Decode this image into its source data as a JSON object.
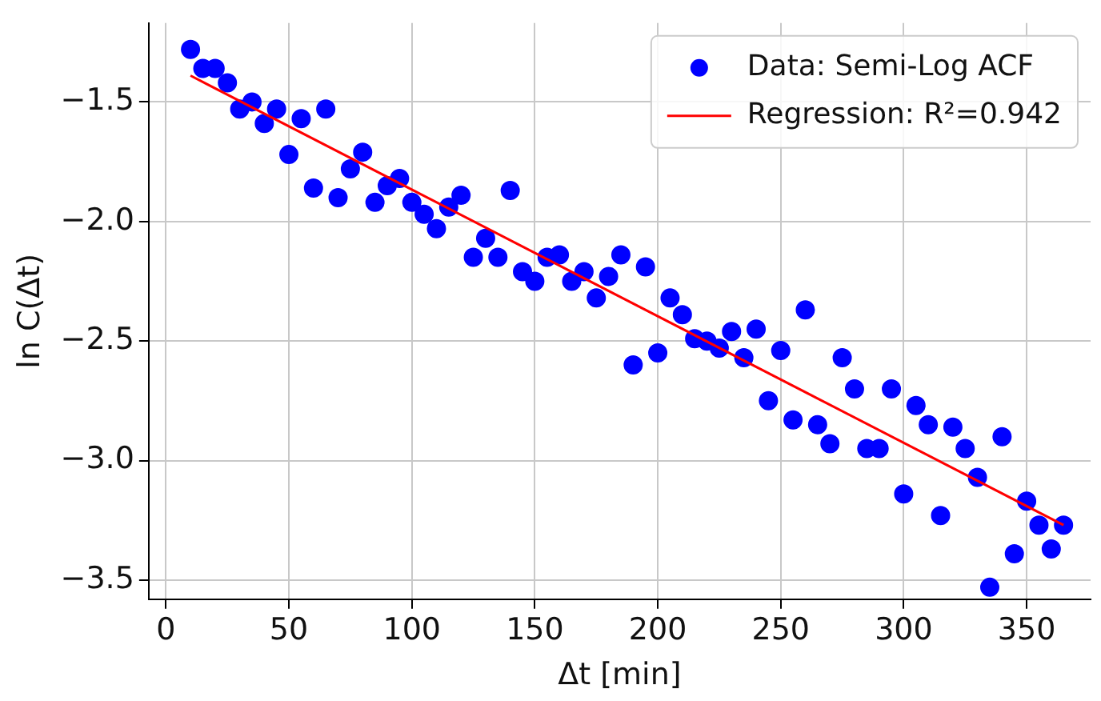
{
  "chart_data": {
    "type": "scatter",
    "xlabel": "Δt [min]",
    "ylabel": "ln C(Δt)",
    "xlim": [
      -7,
      376
    ],
    "ylim": [
      -3.58,
      -1.17
    ],
    "xticks": [
      0,
      50,
      100,
      150,
      200,
      250,
      300,
      350
    ],
    "yticks": [
      -3.5,
      {
        "value": -3,
        "label": "−3.0"
      },
      -2.5,
      {
        "value": -2,
        "label": "−2.0"
      },
      -1.5
    ],
    "grid": true,
    "legend": "top right",
    "series": [
      {
        "name": "Data: Semi-Log ACF",
        "type": "scatter",
        "marker": "circle",
        "color": "#0000ff",
        "x": [
          10,
          15,
          20,
          25,
          30,
          35,
          40,
          45,
          50,
          55,
          60,
          65,
          70,
          75,
          80,
          85,
          90,
          95,
          100,
          105,
          110,
          115,
          120,
          125,
          130,
          135,
          140,
          145,
          150,
          155,
          160,
          165,
          170,
          175,
          180,
          185,
          190,
          195,
          200,
          205,
          210,
          215,
          220,
          225,
          230,
          235,
          240,
          245,
          250,
          255,
          260,
          265,
          270,
          275,
          280,
          285,
          290,
          295,
          300,
          305,
          310,
          315,
          320,
          325,
          330,
          335,
          340,
          345,
          350,
          355,
          360,
          365
        ],
        "values": [
          -1.28,
          -1.36,
          -1.36,
          -1.42,
          -1.53,
          -1.5,
          -1.59,
          -1.53,
          -1.72,
          -1.57,
          -1.86,
          -1.53,
          -1.9,
          -1.78,
          -1.71,
          -1.92,
          -1.85,
          -1.82,
          -1.92,
          -1.97,
          -2.03,
          -1.94,
          -1.89,
          -2.15,
          -2.07,
          -2.15,
          -1.87,
          -2.21,
          -2.25,
          -2.15,
          -2.14,
          -2.25,
          -2.21,
          -2.32,
          -2.23,
          -2.14,
          -2.6,
          -2.19,
          -2.55,
          -2.32,
          -2.39,
          -2.49,
          -2.5,
          -2.53,
          -2.46,
          -2.57,
          -2.45,
          -2.75,
          -2.54,
          -2.83,
          -2.37,
          -2.85,
          -2.93,
          -2.57,
          -2.7,
          -2.95,
          -2.95,
          -2.7,
          -3.14,
          -2.77,
          -2.85,
          -3.23,
          -2.86,
          -2.95,
          -3.07,
          -3.53,
          -2.9,
          -3.39,
          -3.17,
          -3.27,
          -3.37,
          -3.27
        ]
      },
      {
        "name": "Regression: R²=0.942",
        "type": "line",
        "marker": "none",
        "line_style": "solid",
        "color": "#ff0000",
        "x": [
          10,
          365
        ],
        "values": [
          -1.39,
          -3.27
        ]
      }
    ]
  }
}
